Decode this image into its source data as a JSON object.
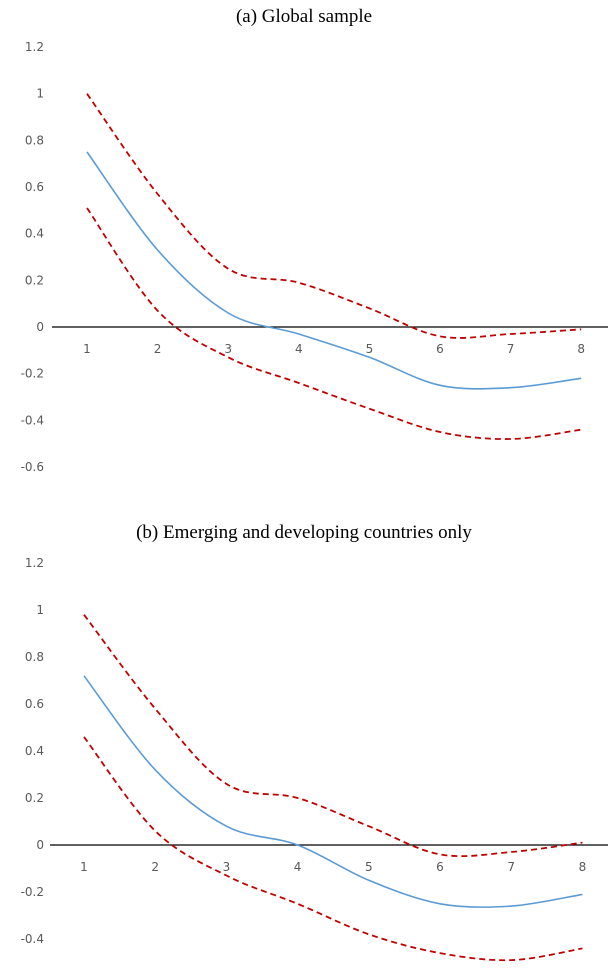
{
  "chart_data": [
    {
      "type": "line",
      "title": "(a)  Global sample",
      "x": [
        1,
        2,
        3,
        4,
        5,
        6,
        7,
        8
      ],
      "x_tick_labels": [
        "1",
        "2",
        "3",
        "4",
        "5",
        "6",
        "7",
        "8"
      ],
      "y_tick_labels": [
        "1.2",
        "1",
        "0.8",
        "0.6",
        "0.4",
        "0.2",
        "0",
        "-0.2",
        "-0.4",
        "-0.6"
      ],
      "ylim": [
        -0.6,
        1.2
      ],
      "grid": false,
      "series": [
        {
          "values": [
            0.75,
            0.33,
            0.06,
            -0.03,
            -0.13,
            -0.25,
            -0.26,
            -0.22
          ],
          "color": "#5B9BD5",
          "style": "solid"
        },
        {
          "values": [
            1.0,
            0.57,
            0.25,
            0.19,
            0.08,
            -0.04,
            -0.03,
            -0.01
          ],
          "color": "#C00000",
          "style": "dashed"
        },
        {
          "values": [
            0.51,
            0.07,
            -0.13,
            -0.24,
            -0.35,
            -0.45,
            -0.48,
            -0.44
          ],
          "color": "#C00000",
          "style": "dashed"
        }
      ]
    },
    {
      "type": "line",
      "title": "(b)  Emerging and developing countries only",
      "x": [
        1,
        2,
        3,
        4,
        5,
        6,
        7,
        8
      ],
      "x_tick_labels": [
        "1",
        "2",
        "3",
        "4",
        "5",
        "6",
        "7",
        "8"
      ],
      "y_tick_labels": [
        "1.2",
        "1",
        "0.8",
        "0.6",
        "0.4",
        "0.2",
        "0",
        "-0.2",
        "-0.4"
      ],
      "ylim": [
        -0.5,
        1.2
      ],
      "grid": false,
      "series": [
        {
          "values": [
            0.72,
            0.32,
            0.08,
            0.0,
            -0.15,
            -0.25,
            -0.26,
            -0.21
          ],
          "color": "#5B9BD5",
          "style": "solid"
        },
        {
          "values": [
            0.98,
            0.58,
            0.26,
            0.2,
            0.08,
            -0.04,
            -0.03,
            0.01
          ],
          "color": "#C00000",
          "style": "dashed"
        },
        {
          "values": [
            0.46,
            0.06,
            -0.13,
            -0.25,
            -0.38,
            -0.46,
            -0.49,
            -0.44
          ],
          "color": "#C00000",
          "style": "dashed"
        }
      ]
    }
  ]
}
